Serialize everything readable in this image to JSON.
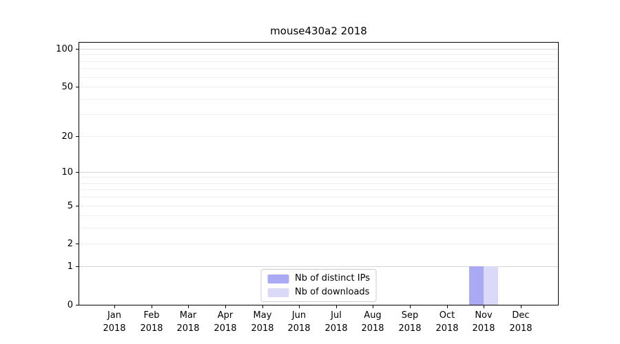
{
  "figure": {
    "title": "mouse430a2 2018"
  },
  "chart_data": {
    "type": "bar",
    "title": "mouse430a2 2018",
    "x": {
      "months": [
        "Jan",
        "Feb",
        "Mar",
        "Apr",
        "May",
        "Jun",
        "Jul",
        "Aug",
        "Sep",
        "Oct",
        "Nov",
        "Dec"
      ],
      "year": "2018"
    },
    "series": [
      {
        "name": "Nb of distinct IPs",
        "color": "#a9a9f4",
        "values": [
          0,
          0,
          0,
          0,
          0,
          0,
          0,
          0,
          0,
          0,
          1,
          0
        ]
      },
      {
        "name": "Nb of downloads",
        "color": "#dadaf8",
        "values": [
          0,
          0,
          0,
          0,
          0,
          0,
          0,
          0,
          0,
          0,
          1,
          0
        ]
      }
    ],
    "yscale": "log1p",
    "ylim": [
      0,
      113
    ],
    "y_ticks": [
      0,
      1,
      2,
      5,
      10,
      20,
      50,
      100
    ],
    "y_major_gridlines": [
      1,
      10,
      100
    ],
    "y_minor_gridlines": [
      2,
      3,
      4,
      5,
      6,
      7,
      8,
      9,
      20,
      30,
      40,
      50,
      60,
      70,
      80,
      90
    ],
    "grid": true,
    "legend": {
      "position": "lower center",
      "items": [
        "Nb of distinct IPs",
        "Nb of downloads"
      ]
    },
    "colors": {
      "spine": "#000000",
      "major_grid": "#d4d4d4",
      "minor_grid": "#f0f0f0",
      "text": "#000000",
      "legend_border": "#cccccc",
      "background": "#ffffff"
    }
  }
}
